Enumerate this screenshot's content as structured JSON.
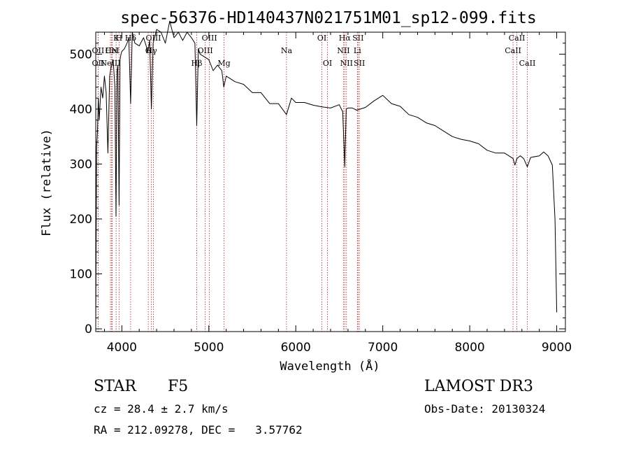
{
  "chart_data": {
    "type": "line",
    "title": "spec-56376-HD140437N021751M01_sp12-099.fits",
    "xlabel": "Wavelength (Å)",
    "ylabel": "Flux (relative)",
    "xlim": [
      3700,
      9100
    ],
    "ylim": [
      -5,
      540
    ],
    "xticks": [
      4000,
      5000,
      6000,
      7000,
      8000,
      9000
    ],
    "yticks": [
      0,
      100,
      200,
      300,
      400,
      500
    ],
    "series": [
      {
        "name": "spectrum",
        "x": [
          3700,
          3710,
          3720,
          3730,
          3740,
          3760,
          3780,
          3800,
          3820,
          3840,
          3860,
          3880,
          3900,
          3920,
          3933,
          3945,
          3955,
          3968,
          3980,
          3990,
          4000,
          4030,
          4060,
          4080,
          4101,
          4120,
          4150,
          4200,
          4250,
          4300,
          4320,
          4340,
          4360,
          4400,
          4450,
          4500,
          4550,
          4600,
          4650,
          4700,
          4750,
          4800,
          4840,
          4861,
          4880,
          4900,
          4950,
          5000,
          5050,
          5100,
          5150,
          5172,
          5200,
          5300,
          5400,
          5500,
          5600,
          5700,
          5800,
          5893,
          5950,
          6000,
          6100,
          6200,
          6300,
          6400,
          6500,
          6540,
          6563,
          6580,
          6600,
          6650,
          6700,
          6800,
          6900,
          7000,
          7100,
          7200,
          7300,
          7400,
          7500,
          7600,
          7700,
          7800,
          7900,
          8000,
          8100,
          8200,
          8300,
          8400,
          8498,
          8520,
          8542,
          8580,
          8620,
          8662,
          8700,
          8800,
          8850,
          8900,
          8950,
          8980,
          9000
        ],
        "values": [
          5,
          330,
          360,
          420,
          380,
          440,
          420,
          460,
          430,
          320,
          460,
          480,
          490,
          440,
          205,
          470,
          480,
          225,
          490,
          500,
          505,
          510,
          520,
          530,
          410,
          540,
          520,
          515,
          530,
          505,
          525,
          400,
          520,
          545,
          540,
          520,
          560,
          530,
          540,
          525,
          540,
          530,
          520,
          370,
          510,
          500,
          495,
          490,
          470,
          480,
          470,
          440,
          460,
          450,
          445,
          430,
          430,
          410,
          410,
          390,
          420,
          412,
          412,
          407,
          404,
          402,
          408,
          395,
          295,
          400,
          402,
          402,
          398,
          403,
          415,
          425,
          410,
          405,
          390,
          385,
          375,
          370,
          360,
          350,
          345,
          342,
          337,
          325,
          320,
          320,
          310,
          298,
          310,
          315,
          310,
          295,
          312,
          315,
          322,
          315,
          298,
          200,
          30
        ]
      }
    ],
    "lines": [
      {
        "label": "Hδ",
        "wave": 4101,
        "row": 0
      },
      {
        "label": "K",
        "wave": 3934,
        "row": 0
      },
      {
        "label": "H",
        "wave": 3968,
        "row": 0
      },
      {
        "label": "OII",
        "wave": 3727,
        "row": 1
      },
      {
        "label": "HeI",
        "wave": 3889,
        "row": 1
      },
      {
        "label": "CN",
        "wave": 3883,
        "row": 1
      },
      {
        "label": "OII",
        "wave": 3727,
        "row": 2
      },
      {
        "label": "NeIII",
        "wave": 3869,
        "row": 2
      },
      {
        "label": "OIII",
        "wave": 4363,
        "row": 0
      },
      {
        "label": "G",
        "wave": 4304,
        "row": 1
      },
      {
        "label": "Hγ",
        "wave": 4340,
        "row": 1
      },
      {
        "label": "OIII",
        "wave": 5007,
        "row": 0
      },
      {
        "label": "OIII",
        "wave": 4959,
        "row": 1
      },
      {
        "label": "Hβ",
        "wave": 4861,
        "row": 2
      },
      {
        "label": "Mg",
        "wave": 5175,
        "row": 2
      },
      {
        "label": "Na",
        "wave": 5893,
        "row": 1
      },
      {
        "label": "OI",
        "wave": 6300,
        "row": 0
      },
      {
        "label": "OI",
        "wave": 6364,
        "row": 2
      },
      {
        "label": "Hα",
        "wave": 6563,
        "row": 0
      },
      {
        "label": "NII",
        "wave": 6548,
        "row": 1
      },
      {
        "label": "NII",
        "wave": 6583,
        "row": 2
      },
      {
        "label": "SII",
        "wave": 6716,
        "row": 0
      },
      {
        "label": "Li",
        "wave": 6708,
        "row": 1
      },
      {
        "label": "SII",
        "wave": 6731,
        "row": 2
      },
      {
        "label": "CaII",
        "wave": 8542,
        "row": 0
      },
      {
        "label": "CaII",
        "wave": 8498,
        "row": 1
      },
      {
        "label": "CaII",
        "wave": 8662,
        "row": 2
      }
    ]
  },
  "info": {
    "class_label": "STAR",
    "subclass": "F5",
    "survey": "LAMOST DR3",
    "cz": "cz = 28.4 ± 2.7 km/s",
    "obs_date": "Obs-Date: 20130324",
    "radec": "RA = 212.09278, DEC =   3.57762"
  }
}
